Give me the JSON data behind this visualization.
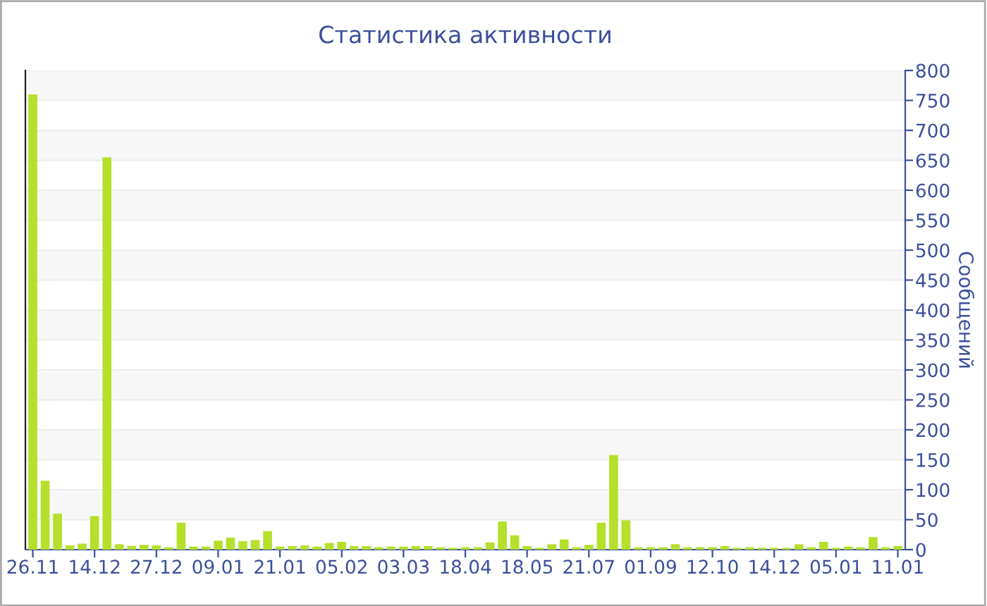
{
  "chart_data": {
    "type": "bar",
    "title": "Статистика активности",
    "ylabel": "Сообщений",
    "categories": [
      "26.11",
      null,
      null,
      null,
      null,
      "14.12",
      null,
      null,
      null,
      null,
      "27.12",
      null,
      null,
      null,
      null,
      "09.01",
      null,
      null,
      null,
      null,
      "21.01",
      null,
      null,
      null,
      null,
      "05.02",
      null,
      null,
      null,
      null,
      "03.03",
      null,
      null,
      null,
      null,
      "18.04",
      null,
      null,
      null,
      null,
      "18.05",
      null,
      null,
      null,
      null,
      "21.07",
      null,
      null,
      null,
      null,
      "01.09",
      null,
      null,
      null,
      null,
      "12.10",
      null,
      null,
      null,
      null,
      "14.12",
      null,
      null,
      null,
      null,
      "05.01",
      null,
      null,
      null,
      null,
      "11.01"
    ],
    "values": [
      760,
      115,
      60,
      7,
      10,
      56,
      655,
      9,
      6,
      8,
      7,
      4,
      45,
      5,
      5,
      15,
      20,
      14,
      16,
      31,
      5,
      6,
      7,
      5,
      11,
      13,
      6,
      6,
      4,
      5,
      5,
      6,
      6,
      4,
      3,
      4,
      4,
      12,
      47,
      24,
      6,
      3,
      9,
      17,
      4,
      8,
      45,
      158,
      49,
      4,
      4,
      4,
      9,
      4,
      4,
      4,
      6,
      3,
      4,
      3,
      3,
      3,
      9,
      4,
      13,
      3,
      5,
      4,
      21,
      4,
      6
    ],
    "color": "#b5df2a",
    "ylim": [
      0,
      800
    ],
    "yticks": [
      0,
      50,
      100,
      150,
      200,
      250,
      300,
      350,
      400,
      450,
      500,
      550,
      600,
      650,
      700,
      750,
      800
    ],
    "grid": "y"
  }
}
